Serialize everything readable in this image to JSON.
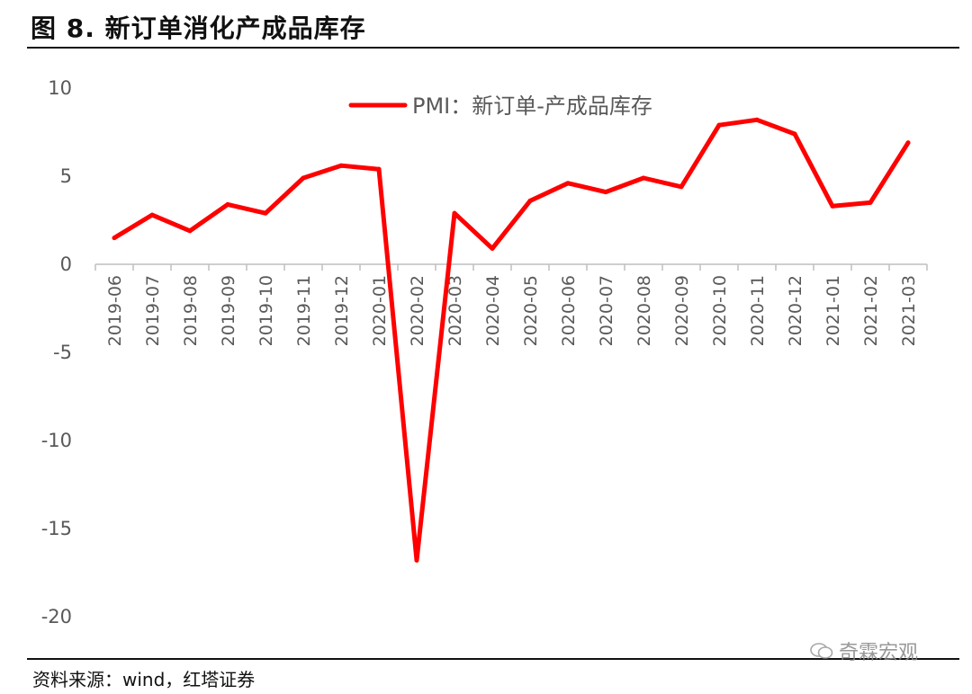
{
  "figure": {
    "title": "图 8. 新订单消化产成品库存",
    "source": "资料来源：wind，红塔证券",
    "watermark": "奇霖宏观"
  },
  "colors": {
    "series": "#ff0000",
    "axis": "#bfbfbf",
    "text": "#595959"
  },
  "chart_data": {
    "type": "line",
    "title": "",
    "xlabel": "",
    "ylabel": "",
    "ylim": [
      -20,
      10
    ],
    "yticks": [
      10,
      5,
      0,
      -5,
      -10,
      -15,
      -20
    ],
    "grid": false,
    "legend_position": "top",
    "categories": [
      "2019-06",
      "2019-07",
      "2019-08",
      "2019-09",
      "2019-10",
      "2019-11",
      "2019-12",
      "2020-01",
      "2020-02",
      "2020-03",
      "2020-04",
      "2020-05",
      "2020-06",
      "2020-07",
      "2020-08",
      "2020-09",
      "2020-10",
      "2020-11",
      "2020-12",
      "2021-01",
      "2021-02",
      "2021-03"
    ],
    "series": [
      {
        "name": "PMI：新订单-产成品库存",
        "values": [
          1.5,
          2.8,
          1.9,
          3.4,
          2.9,
          4.9,
          5.6,
          5.4,
          -16.8,
          2.9,
          0.9,
          3.6,
          4.6,
          4.1,
          4.9,
          4.4,
          7.9,
          8.2,
          7.4,
          3.3,
          3.5,
          6.9
        ]
      }
    ]
  }
}
